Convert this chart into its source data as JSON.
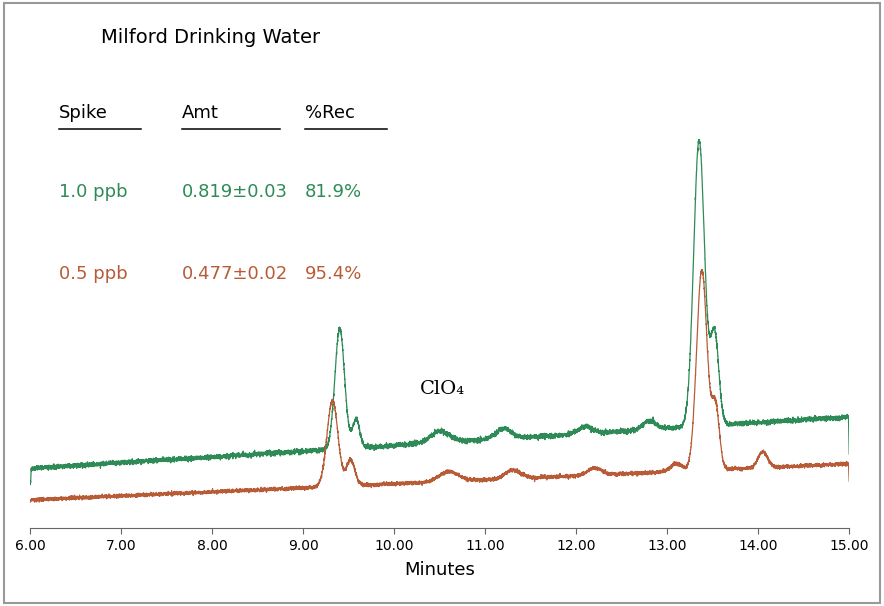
{
  "title": "Milford Drinking Water",
  "header_spike": "Spike",
  "header_amt": "Amt",
  "header_rec": "%Rec",
  "row1_spike": "1.0 ppb",
  "row1_amt": "0.819±0.03",
  "row1_rec": "81.9%",
  "row2_spike": "0.5 ppb",
  "row2_amt": "0.477±0.02",
  "row2_rec": "95.4%",
  "color_green": "#2E8B57",
  "color_red": "#B85C38",
  "color_black": "#000000",
  "xlabel": "Minutes",
  "xmin": 6.0,
  "xmax": 15.0,
  "xticks": [
    6.0,
    7.0,
    8.0,
    9.0,
    10.0,
    11.0,
    12.0,
    13.0,
    14.0,
    15.0
  ],
  "annotation": "ClO₄",
  "background_color": "#ffffff"
}
